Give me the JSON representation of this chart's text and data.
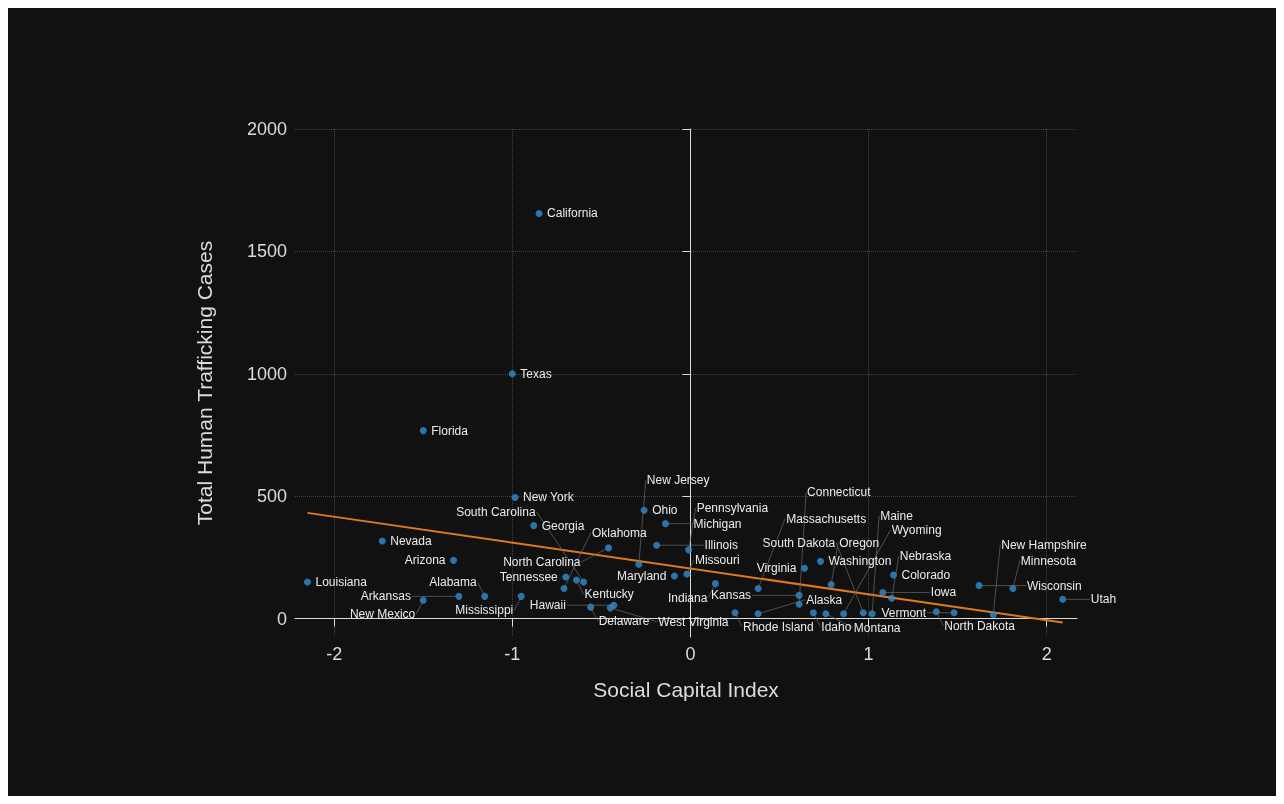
{
  "chart_data": {
    "type": "scatter",
    "xlabel": "Social Capital Index",
    "ylabel": "Total Human Trafficking Cases",
    "xlim": [
      -2.22,
      2.17
    ],
    "ylim": [
      -75,
      2000
    ],
    "xticks": [
      -2,
      -1,
      0,
      1,
      2
    ],
    "yticks": [
      0,
      500,
      1000,
      1500,
      2000
    ],
    "grid": true,
    "series": [
      {
        "marker": "circle",
        "color": "#2e8fd6",
        "x": [
          -0.85,
          -1.0,
          -1.5,
          -0.985,
          -0.88,
          -0.26,
          -0.14,
          -1.73,
          -1.33,
          -2.15,
          -1.5,
          -1.3,
          -1.155,
          -0.95,
          -0.46,
          -0.19,
          -0.01,
          -0.29,
          0.64,
          0.73,
          1.14,
          1.62,
          1.81,
          2.09,
          0.79,
          1.08,
          1.13,
          0.61,
          0.61,
          0.38,
          0.14,
          -0.02,
          -0.7,
          -0.64,
          -0.71,
          -0.56,
          -0.45,
          -0.43,
          0.25,
          0.38,
          -0.09,
          0.69,
          0.76,
          0.86,
          0.97,
          1.02,
          1.38,
          1.48,
          1.7,
          -0.6
        ],
        "values": [
          1655,
          1000,
          768,
          495,
          380,
          443,
          388,
          317,
          238,
          150,
          75,
          91,
          91,
          91,
          289,
          300,
          281,
          222,
          206,
          234,
          178,
          135,
          123,
          79,
          139,
          107,
          83,
          95,
          59,
          123,
          143,
          182,
          170,
          158,
          123,
          47,
          44,
          55,
          24,
          20,
          174,
          24,
          20,
          20,
          24,
          20,
          28,
          24,
          16,
          150
        ]
      },
      {
        "type": "line",
        "color": "#e0781c",
        "x": [
          -2.15,
          2.09
        ],
        "values": [
          432,
          -16
        ]
      }
    ],
    "annotations": [
      {
        "text": "California",
        "x": -0.85,
        "y": 1655
      },
      {
        "text": "Texas",
        "x": -1.0,
        "y": 1000
      },
      {
        "text": "Florida",
        "x": -1.5,
        "y": 768
      },
      {
        "text": "New York",
        "x": -0.985,
        "y": 495
      },
      {
        "text": "Georgia",
        "x": -0.88,
        "y": 380
      },
      {
        "text": "Ohio",
        "x": -0.26,
        "y": 443
      },
      {
        "text": "Michigan",
        "x": -0.14,
        "y": 388
      },
      {
        "text": "Nevada",
        "x": -1.73,
        "y": 317
      },
      {
        "text": "Arizona",
        "x": -1.33,
        "y": 238
      },
      {
        "text": "Louisiana",
        "x": -2.15,
        "y": 150
      },
      {
        "text": "New Mexico",
        "x": -1.5,
        "y": 75
      },
      {
        "text": "Arkansas",
        "x": -1.3,
        "y": 91
      },
      {
        "text": "Alabama",
        "x": -1.155,
        "y": 91
      },
      {
        "text": "Mississippi",
        "x": -0.95,
        "y": 91
      },
      {
        "text": "North Carolina",
        "x": -0.46,
        "y": 289
      },
      {
        "text": "Illinois",
        "x": -0.19,
        "y": 300
      },
      {
        "text": "Pennsylvania",
        "x": -0.01,
        "y": 281
      },
      {
        "text": "New Jersey",
        "x": -0.29,
        "y": 222
      },
      {
        "text": "Virginia",
        "x": 0.64,
        "y": 206
      },
      {
        "text": "Washington",
        "x": 0.73,
        "y": 234
      },
      {
        "text": "Colorado",
        "x": 1.14,
        "y": 178
      },
      {
        "text": "Wisconsin",
        "x": 1.62,
        "y": 135
      },
      {
        "text": "Minnesota",
        "x": 1.81,
        "y": 123
      },
      {
        "text": "Utah",
        "x": 2.09,
        "y": 79
      },
      {
        "text": "Oregon",
        "x": 0.79,
        "y": 139
      },
      {
        "text": "Iowa",
        "x": 1.08,
        "y": 107
      },
      {
        "text": "Nebraska",
        "x": 1.13,
        "y": 83
      },
      {
        "text": "Kansas",
        "x": 0.61,
        "y": 95
      },
      {
        "text": "Connecticut",
        "x": 0.61,
        "y": 59
      },
      {
        "text": "Massachusetts",
        "x": 0.38,
        "y": 123
      },
      {
        "text": "Indiana",
        "x": 0.14,
        "y": 143
      },
      {
        "text": "Missouri",
        "x": -0.02,
        "y": 182
      },
      {
        "text": "Tennessee",
        "x": -0.7,
        "y": 170
      },
      {
        "text": "Kentucky",
        "x": -0.64,
        "y": 158
      },
      {
        "text": "Oklahoma",
        "x": -0.71,
        "y": 123
      },
      {
        "text": "Delaware",
        "x": -0.56,
        "y": 47
      },
      {
        "text": "West Virginia",
        "x": -0.45,
        "y": 44
      },
      {
        "text": "Hawaii",
        "x": -0.43,
        "y": 55
      },
      {
        "text": "Rhode Island",
        "x": 0.25,
        "y": 24
      },
      {
        "text": "Alaska",
        "x": 0.38,
        "y": 20
      },
      {
        "text": "Maryland",
        "x": -0.09,
        "y": 174
      },
      {
        "text": "Idaho",
        "x": 0.69,
        "y": 24
      },
      {
        "text": "Montana",
        "x": 0.76,
        "y": 20
      },
      {
        "text": "Wyoming",
        "x": 0.86,
        "y": 20
      },
      {
        "text": "South Dakota",
        "x": 0.97,
        "y": 24
      },
      {
        "text": "Maine",
        "x": 1.02,
        "y": 20
      },
      {
        "text": "North Dakota",
        "x": 1.38,
        "y": 28
      },
      {
        "text": "Vermont",
        "x": 1.48,
        "y": 24
      },
      {
        "text": "New Hampshire",
        "x": 1.7,
        "y": 16
      },
      {
        "text": "South Carolina",
        "x": -0.6,
        "y": 150
      }
    ]
  }
}
